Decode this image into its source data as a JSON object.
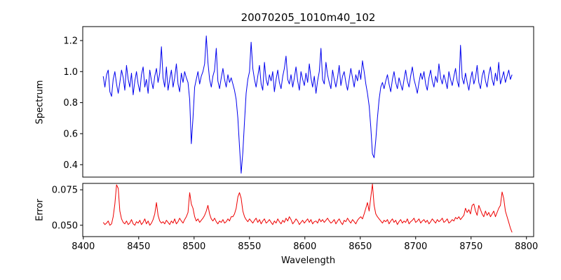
{
  "chart_data": {
    "type": "line",
    "title": "20070205_1010m40_102",
    "xlabel": "Wavelength",
    "grid": false,
    "legend_position": "none",
    "xlim": [
      8399.5,
      8806.5
    ],
    "xticks": [
      8400,
      8450,
      8500,
      8550,
      8600,
      8650,
      8700,
      8750,
      8800
    ],
    "xtick_labels": [
      "8400",
      "8450",
      "8500",
      "8550",
      "8600",
      "8650",
      "8700",
      "8750",
      "8800"
    ],
    "panels": [
      {
        "name": "spectrum",
        "ylabel": "Spectrum",
        "ylim": [
          0.32,
          1.29
        ],
        "yticks": [
          0.4,
          0.6,
          0.8,
          1.0,
          1.2
        ],
        "ytick_labels": [
          "0.4",
          "0.6",
          "0.8",
          "1.0",
          "1.2"
        ],
        "line_color": "#0000ee",
        "x_start": 8418,
        "x_step": 1.5,
        "value_scale": 0.001,
        "values": [
          970,
          900,
          980,
          1010,
          870,
          840,
          950,
          1000,
          920,
          860,
          930,
          1010,
          960,
          880,
          1040,
          950,
          900,
          990,
          850,
          940,
          1000,
          920,
          870,
          980,
          1030,
          900,
          950,
          860,
          1010,
          940,
          890,
          970,
          1020,
          930,
          990,
          1160,
          960,
          900,
          1030,
          880,
          950,
          1010,
          900,
          960,
          1050,
          920,
          870,
          990,
          930,
          1000,
          960,
          930,
          820,
          535,
          700,
          900,
          950,
          1000,
          920,
          970,
          1000,
          1050,
          1230,
          1060,
          950,
          900,
          970,
          1010,
          1150,
          940,
          890,
          960,
          1020,
          950,
          900,
          980,
          930,
          960,
          920,
          880,
          820,
          700,
          520,
          345,
          480,
          680,
          860,
          950,
          1000,
          1190,
          1020,
          950,
          900,
          970,
          1040,
          920,
          880,
          1060,
          950,
          910,
          980,
          940,
          1000,
          870,
          950,
          1010,
          930,
          890,
          970,
          1020,
          1100,
          950,
          920,
          980,
          900,
          960,
          1030,
          940,
          880,
          1000,
          950,
          910,
          990,
          930,
          1050,
          960,
          900,
          970,
          860,
          940,
          1000,
          1150,
          950,
          920,
          1060,
          980,
          930,
          890,
          1010,
          950,
          900,
          960,
          1040,
          910,
          970,
          1000,
          930,
          880,
          950,
          1020,
          960,
          900,
          980,
          940,
          1010,
          950,
          1070,
          1000,
          920,
          860,
          780,
          640,
          470,
          445,
          560,
          700,
          820,
          900,
          930,
          890,
          940,
          980,
          920,
          870,
          950,
          1000,
          930,
          890,
          960,
          920,
          880,
          950,
          1010,
          940,
          900,
          970,
          1030,
          950,
          910,
          860,
          930,
          990,
          950,
          1000,
          920,
          880,
          960,
          1010,
          940,
          900,
          970,
          930,
          1050,
          960,
          920,
          980,
          940,
          890,
          1000,
          950,
          910,
          970,
          1020,
          940,
          900,
          1170,
          960,
          920,
          990,
          930,
          880,
          950,
          1000,
          920,
          960,
          1040,
          930,
          890,
          970,
          1010,
          940,
          900,
          980,
          1030,
          950,
          910,
          990,
          940,
          1060,
          920,
          960,
          1000,
          930,
          970,
          1010,
          950,
          980
        ]
      },
      {
        "name": "error",
        "ylabel": "Error",
        "ylim": [
          0.042,
          0.0795
        ],
        "yticks": [
          0.05,
          0.075
        ],
        "ytick_labels": [
          "0.050",
          "0.075"
        ],
        "line_color": "#ee0000",
        "x_start": 8418,
        "x_step": 1.5,
        "value_scale": 0.0001,
        "values": [
          520,
          505,
          515,
          530,
          500,
          510,
          560,
          650,
          785,
          760,
          600,
          545,
          520,
          510,
          530,
          505,
          515,
          540,
          510,
          500,
          525,
          515,
          535,
          505,
          520,
          545,
          510,
          530,
          500,
          515,
          540,
          580,
          660,
          570,
          530,
          515,
          525,
          510,
          535,
          520,
          505,
          530,
          515,
          545,
          510,
          525,
          550,
          530,
          515,
          540,
          560,
          590,
          730,
          650,
          620,
          560,
          530,
          545,
          520,
          535,
          550,
          570,
          600,
          640,
          580,
          545,
          530,
          550,
          525,
          510,
          530,
          520,
          540,
          515,
          525,
          545,
          530,
          560,
          560,
          580,
          620,
          700,
          730,
          690,
          600,
          560,
          540,
          525,
          545,
          530,
          515,
          535,
          550,
          520,
          540,
          510,
          530,
          545,
          515,
          525,
          540,
          520,
          505,
          530,
          515,
          545,
          525,
          510,
          535,
          520,
          550,
          530,
          560,
          540,
          510,
          525,
          545,
          530,
          505,
          520,
          535,
          515,
          530,
          545,
          520,
          540,
          510,
          525,
          530,
          515,
          545,
          525,
          540,
          520,
          535,
          550,
          530,
          515,
          525,
          540,
          510,
          530,
          545,
          520,
          505,
          535,
          525,
          550,
          530,
          515,
          540,
          525,
          510,
          535,
          550,
          560,
          545,
          580,
          620,
          660,
          600,
          700,
          790,
          640,
          580,
          560,
          545,
          530,
          515,
          535,
          525,
          540,
          510,
          530,
          545,
          520,
          535,
          505,
          525,
          540,
          515,
          530,
          520,
          545,
          510,
          525,
          535,
          550,
          520,
          530,
          545,
          515,
          530,
          540,
          520,
          535,
          510,
          525,
          545,
          530,
          515,
          540,
          525,
          535,
          550,
          520,
          530,
          545,
          515,
          525,
          540,
          530,
          555,
          545,
          560,
          540,
          555,
          570,
          620,
          590,
          610,
          580,
          640,
          650,
          600,
          570,
          640,
          610,
          580,
          560,
          600,
          570,
          590,
          560,
          580,
          600,
          560,
          590,
          620,
          640,
          735,
          690,
          600,
          560,
          520,
          480,
          450
        ]
      }
    ]
  }
}
